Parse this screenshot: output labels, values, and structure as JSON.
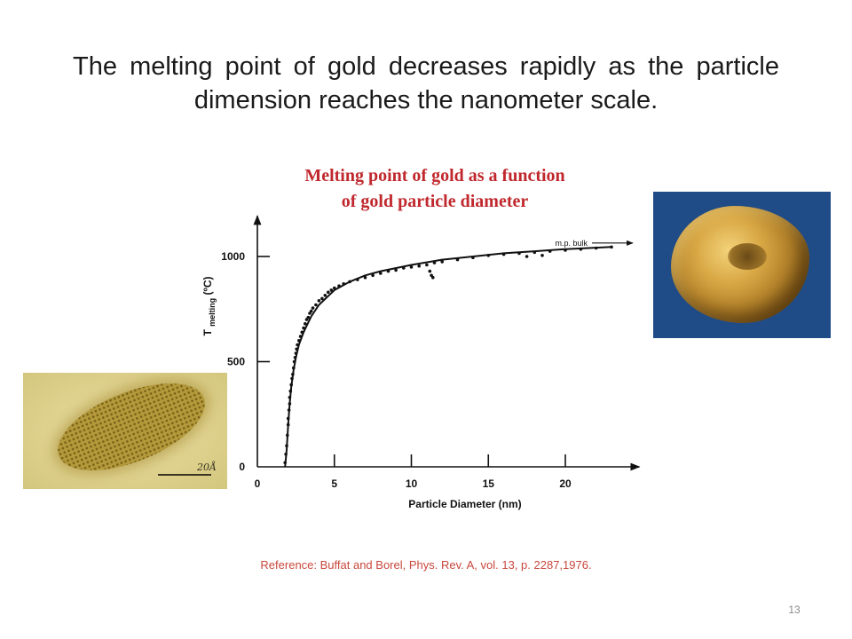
{
  "slide": {
    "title": "The melting point of gold decreases rapidly as the particle dimension reaches the nanometer scale.",
    "reference": "Reference: Buffat and Borel, Phys. Rev. A, vol. 13, p. 2287,1976.",
    "page_number": "13"
  },
  "images": {
    "tem": {
      "scale_label": "20Å"
    }
  },
  "chart_data": {
    "type": "scatter",
    "title_line1": "Melting point of gold as a function",
    "title_line2": "of gold particle diameter",
    "xlabel": "Particle Diameter (nm)",
    "ylabel": {
      "main": "T",
      "subscript": "melting",
      "unit": " (ºC)"
    },
    "xlim": [
      0,
      24
    ],
    "ylim": [
      0,
      1100
    ],
    "xticks": [
      0,
      5,
      10,
      15,
      20
    ],
    "yticks": [
      0,
      500,
      1000
    ],
    "bulk_label": "m.p. bulk",
    "bulk_value": 1064,
    "colors": {
      "points": "#111111",
      "curve": "#111111",
      "title": "#c0282d"
    },
    "series": [
      {
        "type": "scatter",
        "points": [
          [
            1.8,
            20
          ],
          [
            1.85,
            60
          ],
          [
            1.9,
            100
          ],
          [
            1.95,
            150
          ],
          [
            2.0,
            200
          ],
          [
            2.0,
            230
          ],
          [
            2.05,
            270
          ],
          [
            2.1,
            300
          ],
          [
            2.1,
            330
          ],
          [
            2.15,
            360
          ],
          [
            2.2,
            390
          ],
          [
            2.25,
            420
          ],
          [
            2.3,
            440
          ],
          [
            2.35,
            470
          ],
          [
            2.4,
            500
          ],
          [
            2.45,
            520
          ],
          [
            2.5,
            540
          ],
          [
            2.55,
            560
          ],
          [
            2.6,
            580
          ],
          [
            2.7,
            600
          ],
          [
            2.8,
            620
          ],
          [
            2.9,
            640
          ],
          [
            3.0,
            660
          ],
          [
            3.1,
            680
          ],
          [
            3.2,
            700
          ],
          [
            3.3,
            710
          ],
          [
            3.4,
            730
          ],
          [
            3.5,
            740
          ],
          [
            3.6,
            755
          ],
          [
            3.8,
            770
          ],
          [
            4.0,
            790
          ],
          [
            4.2,
            800
          ],
          [
            4.4,
            815
          ],
          [
            4.6,
            830
          ],
          [
            4.8,
            840
          ],
          [
            5.0,
            850
          ],
          [
            5.3,
            860
          ],
          [
            5.6,
            870
          ],
          [
            6.0,
            880
          ],
          [
            6.5,
            890
          ],
          [
            7.0,
            900
          ],
          [
            7.5,
            910
          ],
          [
            8.0,
            920
          ],
          [
            8.5,
            930
          ],
          [
            9.0,
            935
          ],
          [
            9.5,
            945
          ],
          [
            10.0,
            950
          ],
          [
            10.5,
            955
          ],
          [
            11.0,
            960
          ],
          [
            11.5,
            970
          ],
          [
            12.0,
            975
          ],
          [
            13.0,
            985
          ],
          [
            14.0,
            995
          ],
          [
            15.0,
            1005
          ],
          [
            16.0,
            1010
          ],
          [
            17.0,
            1015
          ],
          [
            18.0,
            1020
          ],
          [
            19.0,
            1025
          ],
          [
            20.0,
            1030
          ],
          [
            21.0,
            1035
          ],
          [
            22.0,
            1040
          ],
          [
            23.0,
            1045
          ],
          [
            11.2,
            930
          ],
          [
            11.3,
            910
          ],
          [
            11.4,
            900
          ],
          [
            17.5,
            1000
          ],
          [
            18.5,
            1005
          ]
        ]
      },
      {
        "type": "line",
        "points": [
          [
            1.8,
            0
          ],
          [
            1.9,
            80
          ],
          [
            2.0,
            200
          ],
          [
            2.1,
            300
          ],
          [
            2.2,
            380
          ],
          [
            2.35,
            460
          ],
          [
            2.5,
            520
          ],
          [
            2.7,
            580
          ],
          [
            3.0,
            640
          ],
          [
            3.5,
            715
          ],
          [
            4.0,
            770
          ],
          [
            5.0,
            840
          ],
          [
            6.0,
            880
          ],
          [
            7.0,
            910
          ],
          [
            8.0,
            930
          ],
          [
            10.0,
            960
          ],
          [
            12.0,
            985
          ],
          [
            14.0,
            1000
          ],
          [
            16.0,
            1015
          ],
          [
            18.0,
            1025
          ],
          [
            20.0,
            1035
          ],
          [
            23.0,
            1045
          ]
        ]
      }
    ]
  }
}
